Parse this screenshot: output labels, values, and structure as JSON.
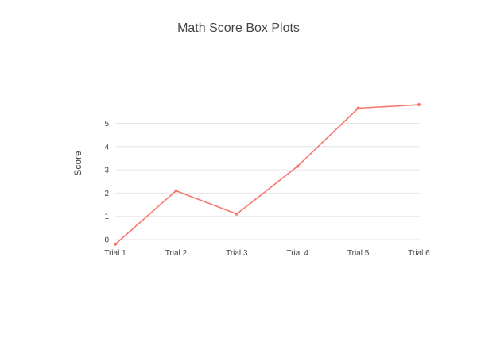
{
  "chart_data": {
    "type": "line",
    "title": "Math Score Box Plots",
    "xlabel": "",
    "ylabel": "Score",
    "categories": [
      "Trial 1",
      "Trial 2",
      "Trial 3",
      "Trial 4",
      "Trial 5",
      "Trial 6"
    ],
    "series": [
      {
        "values": [
          -0.2,
          2.1,
          1.1,
          3.15,
          5.65,
          5.8
        ],
        "color": "#f8766d"
      }
    ],
    "yticks": [
      0,
      1,
      2,
      3,
      4,
      5
    ],
    "ylim": [
      -0.35,
      6.0
    ],
    "grid": true,
    "legend": "none"
  }
}
